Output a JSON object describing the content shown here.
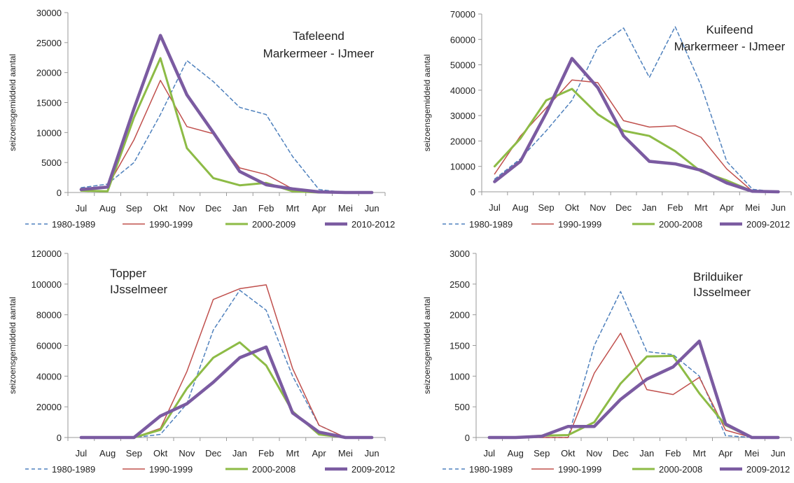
{
  "y_label": "seizoensgemiddeld aantal",
  "colors": {
    "s1980": "#4f81bd",
    "s1990": "#c0504d",
    "s2000": "#8dbb46",
    "s2010": "#7b5ba1",
    "axis": "#9a9a9a",
    "grid": "#d0d0d0"
  },
  "chart_data": [
    {
      "type": "line",
      "panel": "tafeleend",
      "title_lines": [
        "Tafeleend",
        "Markermeer - IJmeer"
      ],
      "ylabel": "seizoensgemiddeld aantal",
      "categories": [
        "Jul",
        "Aug",
        "Sep",
        "Okt",
        "Nov",
        "Dec",
        "Jan",
        "Feb",
        "Mrt",
        "Apr",
        "Mei",
        "Jun"
      ],
      "ylim": [
        0,
        30000
      ],
      "yticks": [
        "0",
        "5000",
        "10000",
        "15000",
        "20000",
        "25000",
        "30000"
      ],
      "grid": false,
      "legend_position": "bottom",
      "series": [
        {
          "name": "1980-1989",
          "values": [
            800,
            1400,
            5000,
            13000,
            22000,
            18500,
            14200,
            13000,
            6000,
            500,
            0,
            0
          ]
        },
        {
          "name": "1990-1999",
          "values": [
            600,
            1000,
            8800,
            18700,
            11000,
            9800,
            4100,
            3000,
            600,
            100,
            0,
            0
          ]
        },
        {
          "name": "2000-2009",
          "values": [
            300,
            200,
            12500,
            22400,
            7400,
            2400,
            1200,
            1600,
            200,
            0,
            0,
            0
          ]
        },
        {
          "name": "2010-2012",
          "values": [
            500,
            900,
            14000,
            26200,
            16300,
            10000,
            3500,
            1300,
            600,
            100,
            0,
            0
          ]
        }
      ]
    },
    {
      "type": "line",
      "panel": "kuifeend",
      "title_lines": [
        "Kuifeend",
        "Markermeer - IJmeer"
      ],
      "ylabel": "seizoensgemiddeld aantal",
      "categories": [
        "Jul",
        "Aug",
        "Sep",
        "Okt",
        "Nov",
        "Dec",
        "Jan",
        "Feb",
        "Mrt",
        "Apr",
        "Mei",
        "Jun"
      ],
      "ylim": [
        0,
        70000
      ],
      "yticks": [
        "0",
        "10000",
        "20000",
        "30000",
        "40000",
        "50000",
        "60000",
        "70000"
      ],
      "grid": false,
      "legend_position": "bottom",
      "series": [
        {
          "name": "1980-1989",
          "values": [
            5000,
            13000,
            24000,
            36000,
            57000,
            64500,
            45000,
            65000,
            42000,
            12000,
            1000,
            0
          ]
        },
        {
          "name": "1990-1999",
          "values": [
            7000,
            22000,
            33000,
            44000,
            43000,
            28000,
            25500,
            26000,
            21500,
            9000,
            200,
            0
          ]
        },
        {
          "name": "2000-2008",
          "values": [
            10000,
            21000,
            36000,
            40500,
            30500,
            24000,
            22000,
            16000,
            8000,
            4500,
            200,
            0
          ]
        },
        {
          "name": "2009-2012",
          "values": [
            4000,
            12000,
            31000,
            52500,
            41000,
            22000,
            12000,
            11000,
            8500,
            3500,
            200,
            0
          ]
        }
      ]
    },
    {
      "type": "line",
      "panel": "topper",
      "title_lines": [
        "Topper",
        "IJsselmeer"
      ],
      "ylabel": "seizoensgemiddeld aantal",
      "categories": [
        "Jul",
        "Aug",
        "Sep",
        "Okt",
        "Nov",
        "Dec",
        "Jan",
        "Feb",
        "Mrt",
        "Apr",
        "Mei",
        "Jun"
      ],
      "ylim": [
        0,
        120000
      ],
      "yticks": [
        "0",
        "20000",
        "40000",
        "60000",
        "80000",
        "100000",
        "120000"
      ],
      "grid": false,
      "legend_position": "bottom",
      "series": [
        {
          "name": "1980-1989",
          "values": [
            0,
            0,
            0,
            2000,
            22000,
            70000,
            96000,
            83000,
            40000,
            8000,
            0,
            0
          ]
        },
        {
          "name": "1990-1999",
          "values": [
            0,
            0,
            0,
            6000,
            43000,
            90000,
            97000,
            99500,
            45000,
            8000,
            0,
            0
          ]
        },
        {
          "name": "2000-2008",
          "values": [
            0,
            0,
            0,
            5000,
            32000,
            52000,
            62000,
            47000,
            17000,
            2000,
            0,
            0
          ]
        },
        {
          "name": "2009-2012",
          "values": [
            0,
            0,
            0,
            14000,
            22000,
            36000,
            52000,
            59000,
            16000,
            3500,
            0,
            0
          ]
        }
      ]
    },
    {
      "type": "line",
      "panel": "brilduiker",
      "title_lines": [
        "Brilduiker",
        "IJsselmeer"
      ],
      "ylabel": "seizoensgemiddeld aantal",
      "categories": [
        "Jul",
        "Aug",
        "Sep",
        "Okt",
        "Nov",
        "Dec",
        "Jan",
        "Feb",
        "Mrt",
        "Apr",
        "Mei",
        "Jun"
      ],
      "ylim": [
        0,
        3000
      ],
      "yticks": [
        "0",
        "500",
        "1000",
        "1500",
        "2000",
        "2500",
        "3000"
      ],
      "grid": false,
      "legend_position": "bottom",
      "series": [
        {
          "name": "1980-1989",
          "values": [
            0,
            0,
            0,
            0,
            1500,
            2380,
            1400,
            1350,
            1000,
            30,
            0,
            0
          ]
        },
        {
          "name": "1990-1999",
          "values": [
            0,
            0,
            0,
            0,
            1050,
            1700,
            780,
            700,
            980,
            120,
            0,
            0
          ]
        },
        {
          "name": "2000-2008",
          "values": [
            0,
            0,
            30,
            40,
            250,
            880,
            1320,
            1330,
            720,
            200,
            0,
            0
          ]
        },
        {
          "name": "2009-2012",
          "values": [
            0,
            0,
            20,
            180,
            180,
            620,
            950,
            1150,
            1570,
            220,
            0,
            0
          ]
        }
      ]
    }
  ]
}
